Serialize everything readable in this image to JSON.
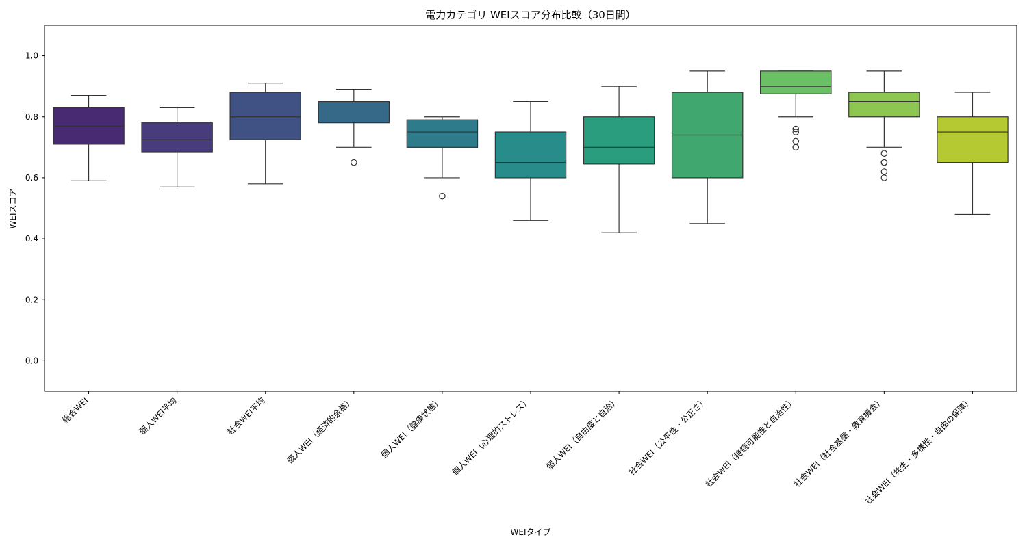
{
  "chart_data": {
    "type": "box",
    "title": "電力カテゴリ WEIスコア分布比較（30日間）",
    "xlabel": "WEIタイプ",
    "ylabel": "WEIスコア",
    "ylim": [
      -0.1,
      1.1
    ],
    "yticks": [
      0.0,
      0.2,
      0.4,
      0.6,
      0.8,
      1.0
    ],
    "ytick_labels": [
      "0.0",
      "0.2",
      "0.4",
      "0.6",
      "0.8",
      "1.0"
    ],
    "grid": false,
    "categories": [
      "総合WEI",
      "個人WEI平均",
      "社会WEI平均",
      "個人WEI（経済的余裕）",
      "個人WEI（健康状態）",
      "個人WEI（心理的ストレス）",
      "個人WEI（自由度と自治）",
      "社会WEI（公平性・公正さ）",
      "社会WEI（持続可能性と自治性）",
      "社会WEI（社会基盤・教育機会）",
      "社会WEI（共生・多様性・自由の保障）"
    ],
    "boxes": [
      {
        "whisker_low": 0.59,
        "q1": 0.71,
        "median": 0.77,
        "q3": 0.83,
        "whisker_high": 0.87,
        "outliers": [],
        "color": "#472a71"
      },
      {
        "whisker_low": 0.57,
        "q1": 0.685,
        "median": 0.725,
        "q3": 0.78,
        "whisker_high": 0.83,
        "outliers": [],
        "color": "#483c7c"
      },
      {
        "whisker_low": 0.58,
        "q1": 0.725,
        "median": 0.8,
        "q3": 0.88,
        "whisker_high": 0.91,
        "outliers": [],
        "color": "#3f5283"
      },
      {
        "whisker_low": 0.7,
        "q1": 0.78,
        "median": 0.85,
        "q3": 0.85,
        "whisker_high": 0.89,
        "outliers": [
          0.65
        ],
        "color": "#366988"
      },
      {
        "whisker_low": 0.6,
        "q1": 0.7,
        "median": 0.75,
        "q3": 0.79,
        "whisker_high": 0.8,
        "outliers": [
          0.54
        ],
        "color": "#2e7b8c"
      },
      {
        "whisker_low": 0.46,
        "q1": 0.6,
        "median": 0.65,
        "q3": 0.75,
        "whisker_high": 0.85,
        "outliers": [],
        "color": "#278c8a"
      },
      {
        "whisker_low": 0.42,
        "q1": 0.645,
        "median": 0.7,
        "q3": 0.8,
        "whisker_high": 0.9,
        "outliers": [],
        "color": "#299d7e"
      },
      {
        "whisker_low": 0.45,
        "q1": 0.6,
        "median": 0.74,
        "q3": 0.88,
        "whisker_high": 0.95,
        "outliers": [],
        "color": "#40a86e"
      },
      {
        "whisker_low": 0.8,
        "q1": 0.875,
        "median": 0.9,
        "q3": 0.95,
        "whisker_high": 0.95,
        "outliers": [
          0.7,
          0.7,
          0.72,
          0.75,
          0.76
        ],
        "color": "#6bbf64"
      },
      {
        "whisker_low": 0.7,
        "q1": 0.8,
        "median": 0.85,
        "q3": 0.88,
        "whisker_high": 0.95,
        "outliers": [
          0.6,
          0.62,
          0.65,
          0.65,
          0.68
        ],
        "color": "#8dc650"
      },
      {
        "whisker_low": 0.48,
        "q1": 0.65,
        "median": 0.75,
        "q3": 0.8,
        "whisker_high": 0.88,
        "outliers": [],
        "color": "#b5c932"
      }
    ]
  }
}
